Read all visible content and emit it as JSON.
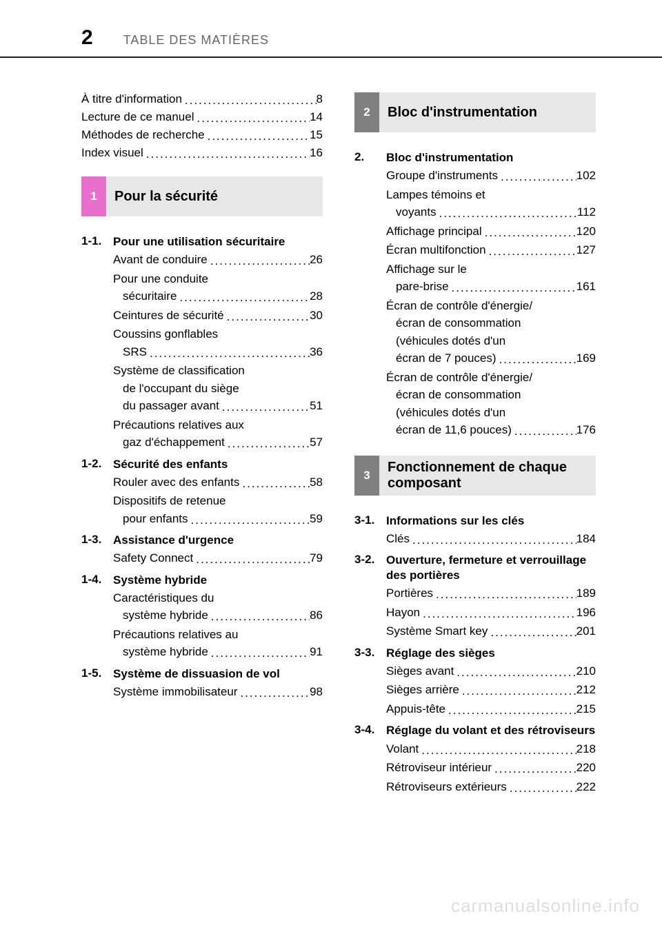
{
  "page_number": "2",
  "header": "TABLE DES MATIÈRES",
  "watermark": "carmanualsonline.info",
  "dot_char": ".",
  "front": [
    {
      "label": "À titre d'information",
      "page": "8"
    },
    {
      "label": "Lecture de ce manuel",
      "page": "14"
    },
    {
      "label": "Méthodes de recherche",
      "page": "15"
    },
    {
      "label": "Index visuel",
      "page": "16"
    }
  ],
  "chapters": {
    "c1": {
      "num": "1",
      "title": "Pour la sécurité",
      "sections": [
        {
          "num": "1-1.",
          "title": "Pour une utilisation sécuritaire",
          "entries": [
            {
              "lines": [
                "Avant de conduire"
              ],
              "page": "26"
            },
            {
              "lines": [
                "Pour une conduite",
                "sécuritaire"
              ],
              "page": "28"
            },
            {
              "lines": [
                "Ceintures de sécurité"
              ],
              "page": "30"
            },
            {
              "lines": [
                "Coussins gonflables",
                "SRS"
              ],
              "page": "36"
            },
            {
              "lines": [
                "Système de classification",
                "de l'occupant du siège",
                "du passager avant"
              ],
              "page": "51"
            },
            {
              "lines": [
                "Précautions relatives aux",
                "gaz d'échappement"
              ],
              "page": "57"
            }
          ]
        },
        {
          "num": "1-2.",
          "title": "Sécurité des enfants",
          "entries": [
            {
              "lines": [
                "Rouler avec des enfants"
              ],
              "page": "58"
            },
            {
              "lines": [
                "Dispositifs de retenue",
                "pour enfants"
              ],
              "page": "59"
            }
          ]
        },
        {
          "num": "1-3.",
          "title": "Assistance d'urgence",
          "entries": [
            {
              "lines": [
                "Safety Connect"
              ],
              "page": "79"
            }
          ]
        },
        {
          "num": "1-4.",
          "title": "Système hybride",
          "entries": [
            {
              "lines": [
                "Caractéristiques du",
                "système hybride"
              ],
              "page": "86"
            },
            {
              "lines": [
                "Précautions relatives au",
                "système hybride"
              ],
              "page": "91"
            }
          ]
        },
        {
          "num": "1-5.",
          "title": "Système de dissuasion de vol",
          "entries": [
            {
              "lines": [
                "Système immobilisateur"
              ],
              "page": "98"
            }
          ]
        }
      ]
    },
    "c2": {
      "num": "2",
      "title": "Bloc d'instrumentation",
      "sections": [
        {
          "num": "2.",
          "title": "Bloc d'instrumentation",
          "entries": [
            {
              "lines": [
                "Groupe d'instruments"
              ],
              "page": "102"
            },
            {
              "lines": [
                "Lampes témoins et",
                "voyants"
              ],
              "page": "112"
            },
            {
              "lines": [
                "Affichage principal"
              ],
              "page": "120"
            },
            {
              "lines": [
                "Écran multifonction"
              ],
              "page": "127"
            },
            {
              "lines": [
                "Affichage sur le",
                "pare-brise"
              ],
              "page": "161"
            },
            {
              "lines": [
                "Écran de contrôle d'énergie/",
                "écran de consommation",
                "(véhicules dotés d'un",
                "écran de 7 pouces)"
              ],
              "page": "169"
            },
            {
              "lines": [
                "Écran de contrôle d'énergie/",
                "écran de consommation",
                "(véhicules dotés d'un",
                "écran de 11,6 pouces)"
              ],
              "page": "176"
            }
          ]
        }
      ]
    },
    "c3": {
      "num": "3",
      "title": "Fonctionnement de chaque composant",
      "sections": [
        {
          "num": "3-1.",
          "title": "Informations sur les clés",
          "entries": [
            {
              "lines": [
                "Clés"
              ],
              "page": "184"
            }
          ]
        },
        {
          "num": "3-2.",
          "title": "Ouverture, fermeture et verrouillage des portières",
          "entries": [
            {
              "lines": [
                "Portières"
              ],
              "page": "189"
            },
            {
              "lines": [
                "Hayon"
              ],
              "page": "196"
            },
            {
              "lines": [
                "Système Smart key"
              ],
              "page": "201"
            }
          ]
        },
        {
          "num": "3-3.",
          "title": "Réglage des sièges",
          "entries": [
            {
              "lines": [
                "Sièges avant"
              ],
              "page": "210"
            },
            {
              "lines": [
                "Sièges arrière"
              ],
              "page": "212"
            },
            {
              "lines": [
                "Appuis-tête"
              ],
              "page": "215"
            }
          ]
        },
        {
          "num": "3-4.",
          "title": "Réglage du volant et des rétroviseurs",
          "entries": [
            {
              "lines": [
                "Volant"
              ],
              "page": "218"
            },
            {
              "lines": [
                "Rétroviseur intérieur"
              ],
              "page": "220"
            },
            {
              "lines": [
                "Rétroviseurs extérieurs"
              ],
              "page": "222"
            }
          ]
        }
      ]
    }
  }
}
